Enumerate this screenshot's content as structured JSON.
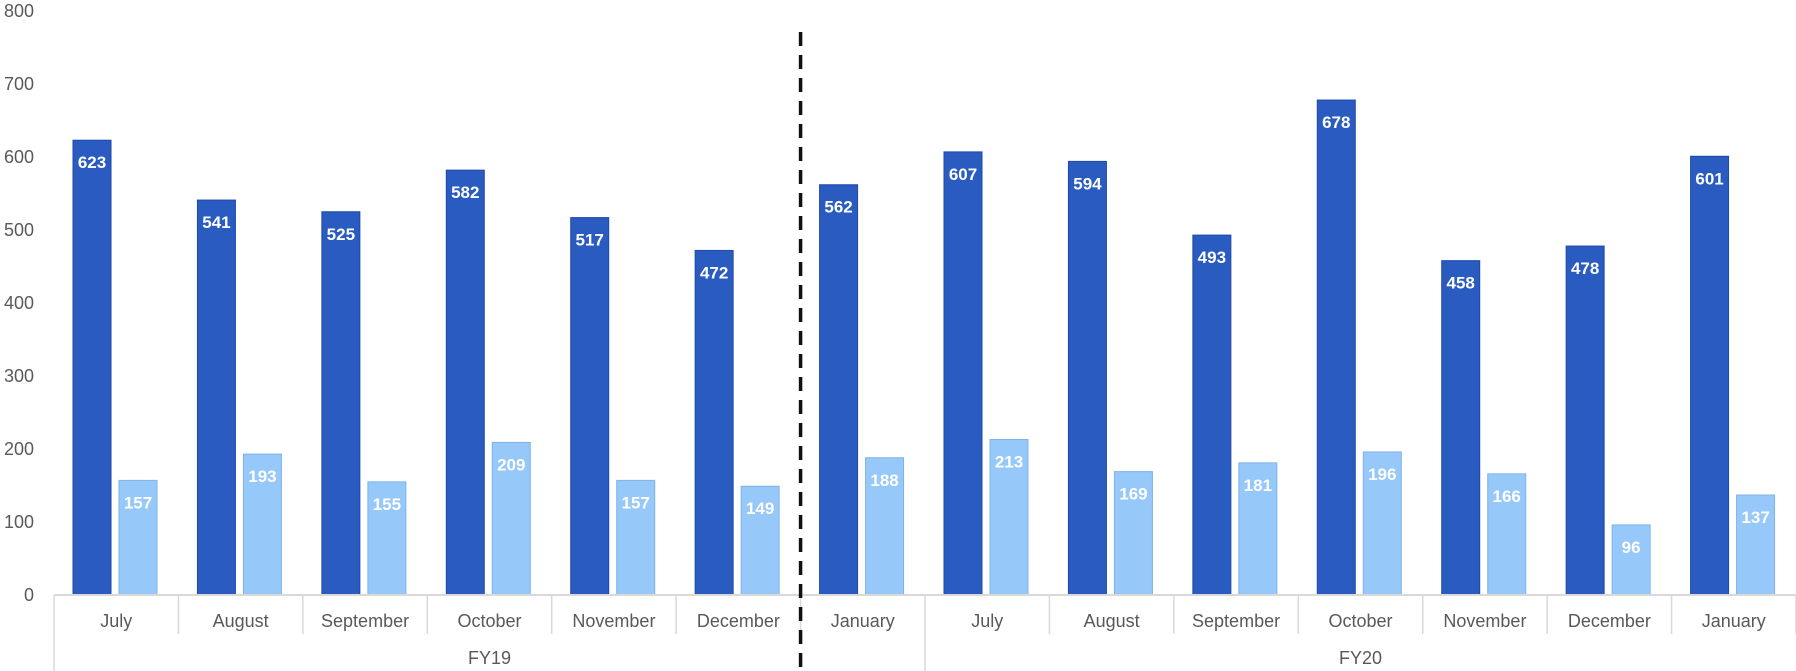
{
  "chart_data": {
    "type": "bar",
    "title": "",
    "xlabel": "",
    "ylabel": "",
    "ylim": [
      0,
      800
    ],
    "yticks": [
      0,
      100,
      200,
      300,
      400,
      500,
      600,
      700,
      800
    ],
    "grid": false,
    "legend": "none",
    "categories": [
      "July",
      "August",
      "September",
      "October",
      "November",
      "December",
      "January",
      "July",
      "August",
      "September",
      "October",
      "November",
      "December",
      "January"
    ],
    "groups": [
      {
        "label": "FY19",
        "count": 7
      },
      {
        "label": "FY20",
        "count": 7
      }
    ],
    "divider_after_category_index": 5,
    "series": [
      {
        "color": "#2a5bc1",
        "values": [
          623,
          541,
          525,
          582,
          517,
          472,
          562,
          607,
          594,
          493,
          678,
          458,
          478,
          601
        ]
      },
      {
        "color": "#96c8fa",
        "values": [
          157,
          193,
          155,
          209,
          157,
          149,
          188,
          213,
          169,
          181,
          196,
          166,
          96,
          137
        ]
      }
    ]
  }
}
